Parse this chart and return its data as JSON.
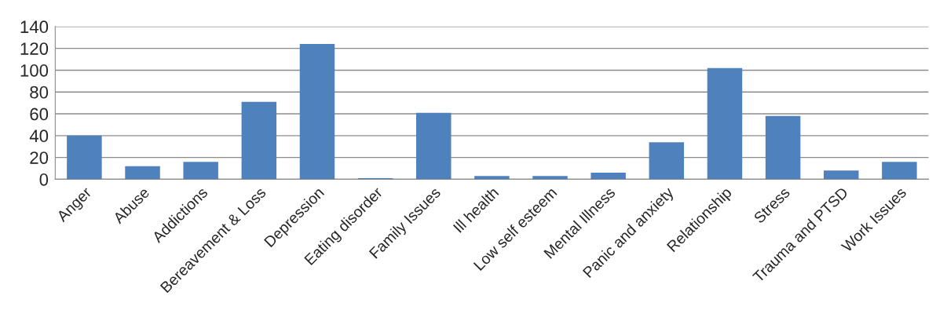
{
  "chart_data": {
    "type": "bar",
    "categories": [
      "Anger",
      "Abuse",
      "Addictions",
      "Bereavement & Loss",
      "Depression",
      "Eating disorder",
      "Family Issues",
      "Ill health",
      "Low self esteem",
      "Mental Illness",
      "Panic and anxiety",
      "Relationship",
      "Stress",
      "Trauma and PTSD",
      "Work Issues"
    ],
    "values": [
      40,
      12,
      16,
      71,
      124,
      1,
      61,
      3,
      3,
      6,
      34,
      102,
      58,
      8,
      16
    ],
    "color": "#4f81bd",
    "ylim": [
      0,
      140
    ],
    "yticks": [
      0,
      20,
      40,
      60,
      80,
      100,
      120,
      140
    ],
    "grid": "y"
  }
}
